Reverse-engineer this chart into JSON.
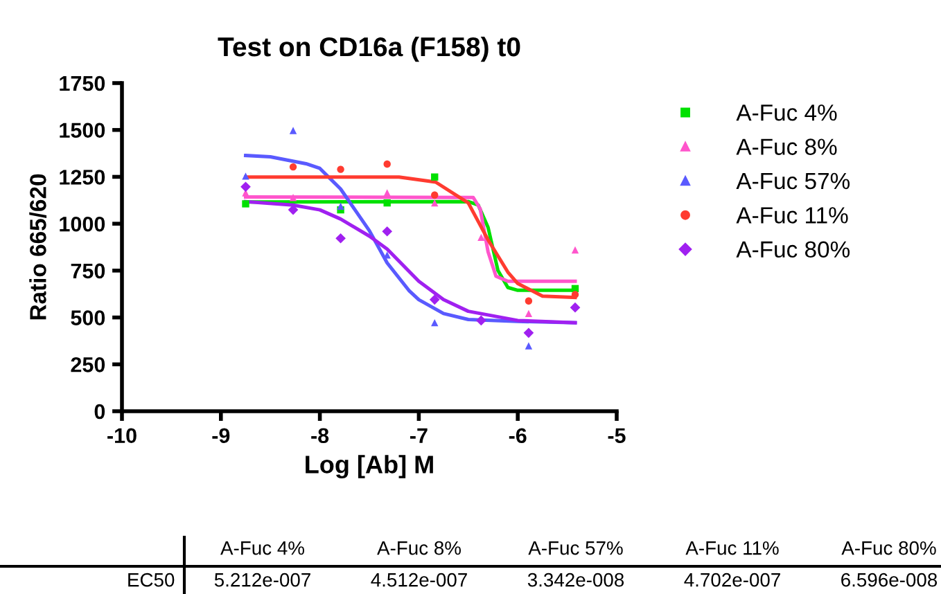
{
  "chart_data": {
    "type": "scatter",
    "title": "Test on CD16a (F158) t0",
    "xlabel": "Log [Ab] M",
    "ylabel": "Ratio 665/620",
    "xlim": [
      -10,
      -5
    ],
    "xticks": [
      -10,
      -9,
      -8,
      -7,
      -6,
      -5
    ],
    "ylim": [
      0,
      1750
    ],
    "yticks": [
      0,
      250,
      500,
      750,
      1000,
      1250,
      1500,
      1750
    ],
    "grid": false,
    "legend": "right",
    "annotations": [
      "EC50",
      "5.212e-007",
      "4.512e-007",
      "3.342e-008",
      "4.702e-007",
      "6.596e-008"
    ],
    "series": [
      {
        "name": "A-Fuc 4%",
        "color": "#00e000",
        "marker": "square",
        "x": [
          -8.75,
          -7.79,
          -7.32,
          -6.84,
          -5.42
        ],
        "values": [
          1106,
          1074,
          1111,
          1249,
          654
        ]
      },
      {
        "name": "A-Fuc 8%",
        "color": "#ff55cc",
        "marker": "triangle",
        "x": [
          -8.75,
          -8.27,
          -7.32,
          -6.84,
          -6.37,
          -5.89,
          -5.42
        ],
        "values": [
          1165,
          1140,
          1165,
          1111,
          927,
          521,
          860
        ]
      },
      {
        "name": "A-Fuc 57%",
        "color": "#5a5aff",
        "marker": "triangle",
        "x": [
          -8.75,
          -8.27,
          -7.79,
          -7.32,
          -6.84,
          -5.89
        ],
        "values": [
          1254,
          1497,
          1094,
          833,
          472,
          349
        ]
      },
      {
        "name": "A-Fuc 11%",
        "color": "#ff3b30",
        "marker": "circle",
        "x": [
          -8.27,
          -7.79,
          -7.32,
          -6.84,
          -5.89,
          -5.42
        ],
        "values": [
          1303,
          1290,
          1318,
          1153,
          588,
          622
        ]
      },
      {
        "name": "A-Fuc 80%",
        "color": "#a020f0",
        "marker": "diamond",
        "x": [
          -8.75,
          -8.27,
          -7.79,
          -7.32,
          -6.84,
          -6.37,
          -5.89,
          -5.42
        ],
        "values": [
          1197,
          1074,
          922,
          959,
          595,
          484,
          418,
          553
        ]
      },
      {
        "type": "line",
        "color": "#00e000",
        "x": [
          -8.75,
          -6.5,
          -6.4,
          -6.3,
          -6.2,
          -6.1,
          -6.0,
          -5.42
        ],
        "values": [
          1116,
          1118,
          1100,
          980,
          750,
          660,
          645,
          645
        ]
      },
      {
        "type": "line",
        "color": "#ff55cc",
        "x": [
          -8.75,
          -6.45,
          -6.38,
          -6.3,
          -6.22,
          -6.1,
          -5.42
        ],
        "values": [
          1143,
          1140,
          1080,
          850,
          720,
          693,
          693
        ]
      },
      {
        "type": "line",
        "color": "#5a5aff",
        "x": [
          -8.75,
          -8.5,
          -8.14,
          -8.0,
          -7.79,
          -7.5,
          -7.32,
          -7.1,
          -7.0,
          -6.75,
          -6.5,
          -6.0,
          -5.42
        ],
        "values": [
          1364,
          1357,
          1320,
          1295,
          1185,
          963,
          791,
          644,
          595,
          521,
          489,
          479,
          472
        ]
      },
      {
        "type": "line",
        "color": "#ff3b30",
        "x": [
          -8.75,
          -7.2,
          -6.83,
          -6.5,
          -6.3,
          -6.1,
          -6.0,
          -5.75,
          -5.42
        ],
        "values": [
          1249,
          1249,
          1222,
          1111,
          914,
          742,
          681,
          614,
          607
        ]
      },
      {
        "type": "line",
        "color": "#a020f0",
        "x": [
          -8.75,
          -8.27,
          -8.0,
          -7.79,
          -7.5,
          -7.32,
          -7.0,
          -6.75,
          -6.5,
          -6.0,
          -5.42
        ],
        "values": [
          1118,
          1099,
          1074,
          1025,
          934,
          865,
          693,
          595,
          533,
          484,
          472
        ]
      }
    ]
  }
}
